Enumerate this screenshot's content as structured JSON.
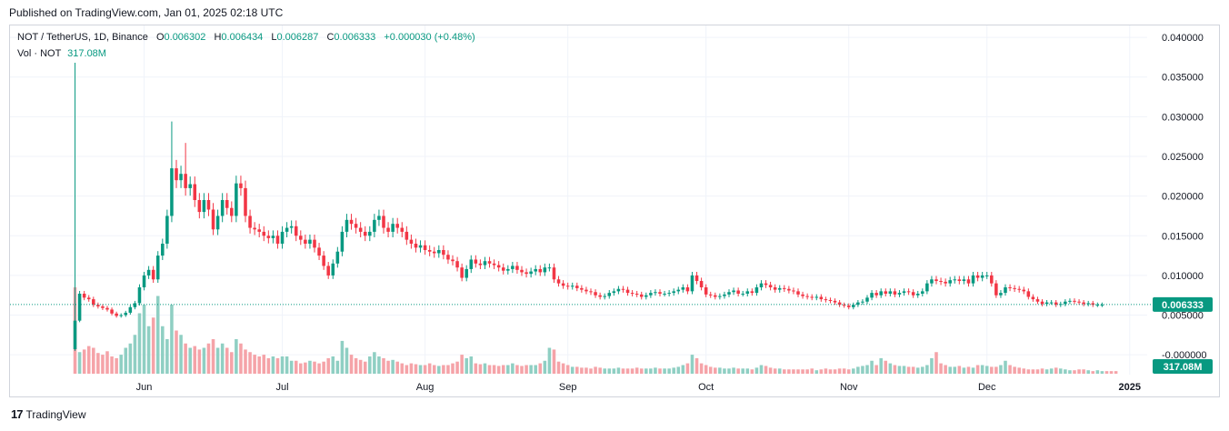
{
  "header": {
    "published": "Published on TradingView.com, Jan 01, 2025 02:18 UTC"
  },
  "legend": {
    "symbol": "NOT / TetherUS, 1D, Binance",
    "o_label": "O",
    "o": "0.006302",
    "h_label": "H",
    "h": "0.006434",
    "l_label": "L",
    "l": "0.006287",
    "c_label": "C",
    "c": "0.006333",
    "change": "+0.000030 (+0.48%)",
    "vol_label": "Vol · NOT",
    "vol": "317.08M"
  },
  "footer": {
    "brand": "TradingView",
    "logo": "17"
  },
  "colors": {
    "up": "#089981",
    "down": "#f23645",
    "vol_up": "#8fcfc3",
    "vol_down": "#f5a3a8",
    "grid": "#f0f3fa",
    "axis_text": "#131722"
  },
  "chart_data": {
    "type": "candlestick",
    "symbol": "NOT/USDT",
    "interval": "1D",
    "exchange": "Binance",
    "ylim": [
      -0.0025,
      0.0415
    ],
    "y_ticks": [
      "0.040000",
      "0.035000",
      "0.030000",
      "0.025000",
      "0.020000",
      "0.015000",
      "0.010000",
      "0.005000",
      "-0.000000"
    ],
    "y_tick_values": [
      0.04,
      0.035,
      0.03,
      0.025,
      0.02,
      0.015,
      0.01,
      0.005,
      0.0
    ],
    "x_labels": [
      {
        "text": "Jun",
        "day": 15
      },
      {
        "text": "Jul",
        "day": 45
      },
      {
        "text": "Aug",
        "day": 76
      },
      {
        "text": "Sep",
        "day": 107
      },
      {
        "text": "Oct",
        "day": 137
      },
      {
        "text": "Nov",
        "day": 168
      },
      {
        "text": "Dec",
        "day": 198
      },
      {
        "text": "2025",
        "day": 229
      }
    ],
    "last_price": "0.006333",
    "last_price_value": 0.006333,
    "volume_label": "317.08M",
    "closes": [
      0.0043,
      0.0077,
      0.0072,
      0.007,
      0.0063,
      0.0061,
      0.0059,
      0.0057,
      0.0052,
      0.0049,
      0.005,
      0.0053,
      0.006,
      0.0065,
      0.0085,
      0.01,
      0.0107,
      0.0095,
      0.0125,
      0.014,
      0.0175,
      0.0235,
      0.022,
      0.0228,
      0.021,
      0.0215,
      0.0195,
      0.018,
      0.0195,
      0.0183,
      0.0158,
      0.0175,
      0.0195,
      0.0185,
      0.0175,
      0.0216,
      0.021,
      0.0175,
      0.016,
      0.0158,
      0.0155,
      0.015,
      0.0147,
      0.015,
      0.014,
      0.0155,
      0.016,
      0.0162,
      0.015,
      0.0145,
      0.014,
      0.0145,
      0.0135,
      0.0125,
      0.0112,
      0.01,
      0.0115,
      0.013,
      0.0155,
      0.017,
      0.0165,
      0.016,
      0.0155,
      0.015,
      0.0155,
      0.017,
      0.0175,
      0.016,
      0.0155,
      0.0165,
      0.016,
      0.0155,
      0.0145,
      0.014,
      0.0135,
      0.0138,
      0.0132,
      0.013,
      0.0128,
      0.0132,
      0.0126,
      0.012,
      0.0118,
      0.011,
      0.0097,
      0.0108,
      0.012,
      0.0115,
      0.0113,
      0.0118,
      0.0115,
      0.0113,
      0.011,
      0.0106,
      0.0108,
      0.0112,
      0.0107,
      0.0104,
      0.0102,
      0.0105,
      0.0108,
      0.0104,
      0.011,
      0.011,
      0.0095,
      0.009,
      0.0087,
      0.0086,
      0.0087,
      0.0084,
      0.0082,
      0.008,
      0.0079,
      0.0075,
      0.0073,
      0.0074,
      0.0078,
      0.008,
      0.0083,
      0.0082,
      0.0078,
      0.0077,
      0.0076,
      0.0073,
      0.0075,
      0.0078,
      0.0079,
      0.0077,
      0.0077,
      0.0078,
      0.008,
      0.0082,
      0.0085,
      0.008,
      0.01,
      0.0093,
      0.0085,
      0.0076,
      0.0075,
      0.0073,
      0.0074,
      0.0076,
      0.0079,
      0.0081,
      0.0077,
      0.0077,
      0.008,
      0.0078,
      0.0085,
      0.009,
      0.0088,
      0.0085,
      0.0082,
      0.0084,
      0.0083,
      0.0081,
      0.008,
      0.0076,
      0.0074,
      0.0073,
      0.0072,
      0.0073,
      0.007,
      0.0069,
      0.0068,
      0.0066,
      0.0063,
      0.0062,
      0.006,
      0.0063,
      0.0066,
      0.0067,
      0.0072,
      0.0078,
      0.0075,
      0.008,
      0.0077,
      0.008,
      0.0076,
      0.0078,
      0.008,
      0.0079,
      0.0075,
      0.0077,
      0.008,
      0.009,
      0.0095,
      0.0093,
      0.0092,
      0.009,
      0.0094,
      0.0095,
      0.0093,
      0.0095,
      0.009,
      0.01,
      0.0097,
      0.01,
      0.01,
      0.009,
      0.0075,
      0.0078,
      0.0085,
      0.0084,
      0.0083,
      0.0082,
      0.008,
      0.0073,
      0.007,
      0.0067,
      0.0064,
      0.0066,
      0.0066,
      0.0063,
      0.0064,
      0.0067,
      0.0068,
      0.0067,
      0.0066,
      0.0064,
      0.0065,
      0.0063,
      0.0063,
      0.0063
    ],
    "volumes": [
      1.0,
      0.25,
      0.28,
      0.32,
      0.3,
      0.24,
      0.22,
      0.26,
      0.2,
      0.18,
      0.22,
      0.3,
      0.35,
      0.45,
      0.7,
      0.8,
      0.55,
      0.65,
      0.9,
      0.55,
      0.4,
      0.8,
      0.5,
      0.45,
      0.35,
      0.3,
      0.32,
      0.28,
      0.3,
      0.35,
      0.4,
      0.3,
      0.35,
      0.3,
      0.25,
      0.4,
      0.35,
      0.28,
      0.25,
      0.22,
      0.2,
      0.22,
      0.18,
      0.2,
      0.18,
      0.2,
      0.2,
      0.15,
      0.15,
      0.12,
      0.13,
      0.15,
      0.14,
      0.12,
      0.14,
      0.18,
      0.2,
      0.15,
      0.38,
      0.3,
      0.22,
      0.18,
      0.16,
      0.14,
      0.2,
      0.25,
      0.2,
      0.18,
      0.15,
      0.16,
      0.14,
      0.12,
      0.1,
      0.12,
      0.11,
      0.1,
      0.1,
      0.12,
      0.1,
      0.09,
      0.1,
      0.1,
      0.12,
      0.14,
      0.22,
      0.18,
      0.2,
      0.12,
      0.11,
      0.12,
      0.1,
      0.1,
      0.09,
      0.1,
      0.1,
      0.12,
      0.1,
      0.09,
      0.1,
      0.1,
      0.1,
      0.12,
      0.15,
      0.3,
      0.28,
      0.14,
      0.12,
      0.1,
      0.08,
      0.08,
      0.07,
      0.07,
      0.06,
      0.08,
      0.07,
      0.06,
      0.06,
      0.06,
      0.07,
      0.06,
      0.06,
      0.06,
      0.07,
      0.06,
      0.06,
      0.06,
      0.07,
      0.06,
      0.06,
      0.06,
      0.07,
      0.08,
      0.1,
      0.12,
      0.22,
      0.18,
      0.12,
      0.1,
      0.08,
      0.07,
      0.07,
      0.06,
      0.06,
      0.07,
      0.06,
      0.06,
      0.06,
      0.05,
      0.07,
      0.1,
      0.09,
      0.07,
      0.06,
      0.06,
      0.05,
      0.05,
      0.05,
      0.05,
      0.05,
      0.05,
      0.06,
      0.04,
      0.05,
      0.06,
      0.05,
      0.05,
      0.06,
      0.06,
      0.05,
      0.06,
      0.08,
      0.09,
      0.1,
      0.15,
      0.1,
      0.18,
      0.15,
      0.12,
      0.1,
      0.09,
      0.09,
      0.08,
      0.08,
      0.07,
      0.08,
      0.1,
      0.18,
      0.25,
      0.12,
      0.1,
      0.08,
      0.08,
      0.09,
      0.07,
      0.08,
      0.07,
      0.1,
      0.1,
      0.09,
      0.08,
      0.08,
      0.1,
      0.15,
      0.1,
      0.08,
      0.07,
      0.06,
      0.05,
      0.05,
      0.05,
      0.06,
      0.05,
      0.06,
      0.07,
      0.06,
      0.05,
      0.04,
      0.04,
      0.05,
      0.05,
      0.04,
      0.03,
      0.04,
      0.03,
      0.03,
      0.03,
      0.03
    ]
  }
}
